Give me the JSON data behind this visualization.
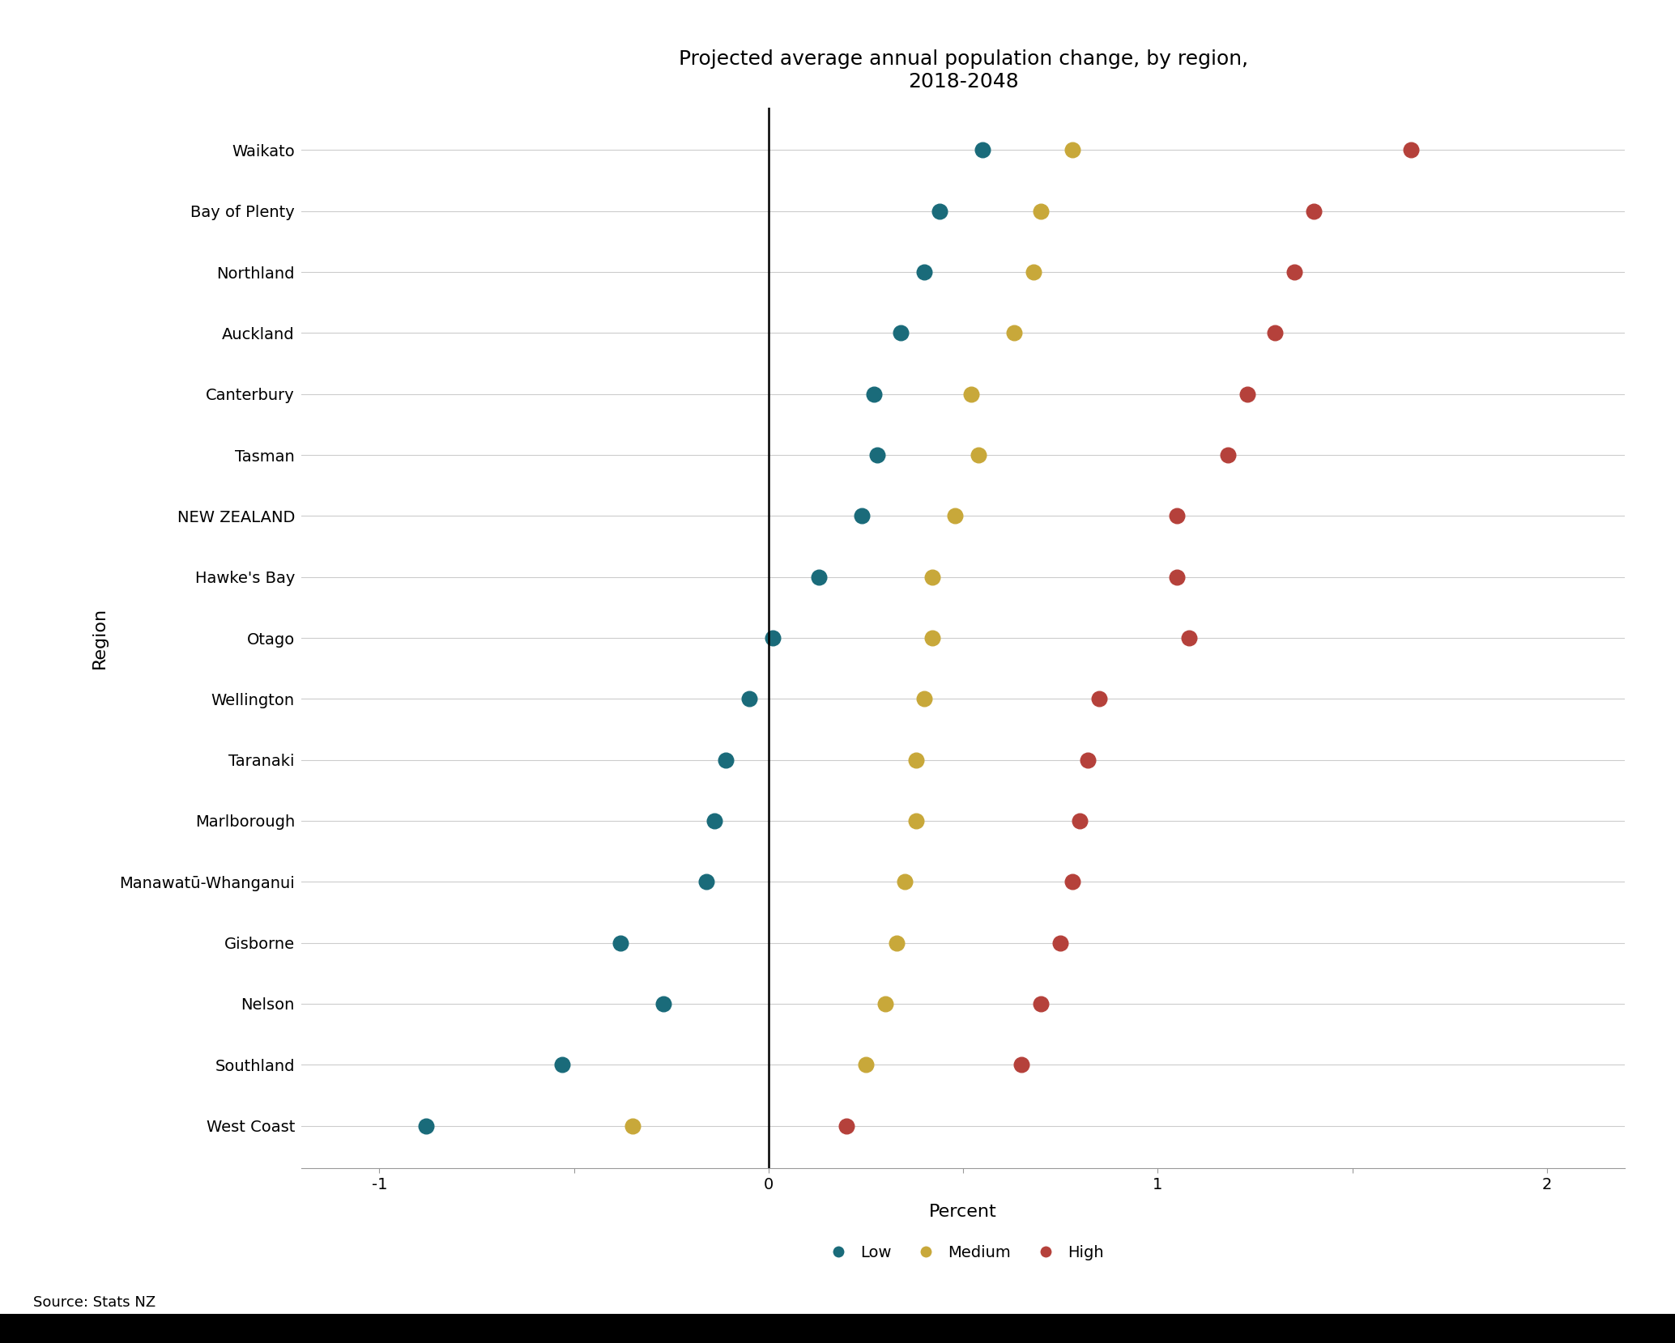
{
  "title": "Projected average annual population change, by region,\n2018-2048",
  "xlabel": "Percent",
  "ylabel": "Region",
  "regions": [
    "Waikato",
    "Bay of Plenty",
    "Northland",
    "Auckland",
    "Canterbury",
    "Tasman",
    "NEW ZEALAND",
    "Hawke's Bay",
    "Otago",
    "Wellington",
    "Taranaki",
    "Marlborough",
    "Manawatū-Whanganui",
    "Gisborne",
    "Nelson",
    "Southland",
    "West Coast"
  ],
  "low": [
    0.55,
    0.44,
    0.4,
    0.34,
    0.27,
    0.28,
    0.24,
    0.13,
    0.01,
    -0.05,
    -0.11,
    -0.14,
    -0.16,
    -0.38,
    -0.27,
    -0.53,
    -0.88
  ],
  "medium": [
    0.78,
    0.7,
    0.68,
    0.63,
    0.52,
    0.54,
    0.48,
    0.42,
    0.42,
    0.4,
    0.38,
    0.38,
    0.35,
    0.33,
    0.3,
    0.25,
    -0.35
  ],
  "high": [
    1.65,
    1.4,
    1.35,
    1.3,
    1.23,
    1.18,
    1.05,
    1.05,
    1.08,
    0.85,
    0.82,
    0.8,
    0.78,
    0.75,
    0.7,
    0.65,
    0.2
  ],
  "low_color": "#1a6b7a",
  "medium_color": "#c8a83a",
  "high_color": "#b5413b",
  "xlim": [
    -1.2,
    2.2
  ],
  "xticks": [
    -1.0,
    -0.5,
    0.0,
    0.5,
    1.0,
    1.5,
    2.0
  ],
  "xtick_labels": [
    "-1",
    "",
    "0",
    "",
    "1",
    "",
    "2"
  ],
  "plot_bg": "#ffffff",
  "fig_bg": "#ffffff",
  "grid_color": "#cccccc",
  "source_text": "Source: Stats NZ",
  "marker_size": 180,
  "title_fontsize": 18,
  "axis_label_fontsize": 16,
  "tick_fontsize": 14,
  "legend_fontsize": 14,
  "legend_marker_size": 11
}
